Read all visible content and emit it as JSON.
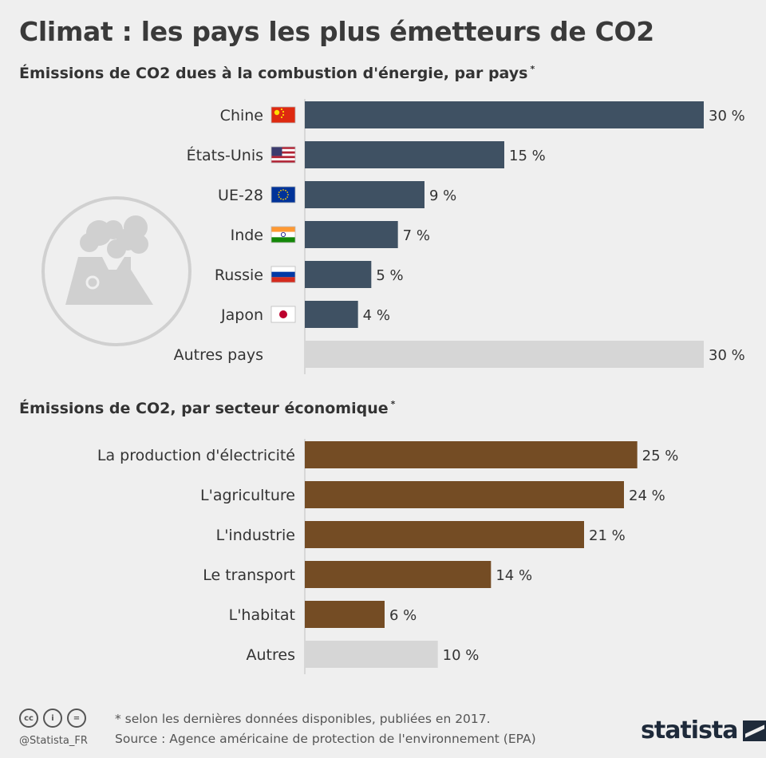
{
  "title": "Climat : les pays les plus émetteurs de CO2",
  "chart_data": [
    {
      "type": "bar",
      "title": "Émissions de CO2 dues à la combustion d'énergie, par pays",
      "title_marker": "*",
      "orientation": "horizontal",
      "unit": "%",
      "categories": [
        "Chine",
        "États-Unis",
        "UE-28",
        "Inde",
        "Russie",
        "Japon",
        "Autres pays"
      ],
      "values": [
        30,
        15,
        9,
        7,
        5,
        4,
        30
      ],
      "value_labels": [
        "30 %",
        "15 %",
        "9 %",
        "7 %",
        "5 %",
        "4 %",
        "30 %"
      ],
      "flags": [
        "china",
        "usa",
        "eu",
        "india",
        "russia",
        "japan",
        null
      ],
      "colors": [
        "#3f5163",
        "#3f5163",
        "#3f5163",
        "#3f5163",
        "#3f5163",
        "#3f5163",
        "#d6d6d6"
      ],
      "xlim": [
        0,
        30
      ],
      "grid": false
    },
    {
      "type": "bar",
      "title": "Émissions de CO2, par secteur économique",
      "title_marker": "*",
      "orientation": "horizontal",
      "unit": "%",
      "categories": [
        "La production d'électricité",
        "L'agriculture",
        "L'industrie",
        "Le transport",
        "L'habitat",
        "Autres"
      ],
      "values": [
        25,
        24,
        21,
        14,
        6,
        10
      ],
      "value_labels": [
        "25 %",
        "24 %",
        "21 %",
        "14 %",
        "6 %",
        "10 %"
      ],
      "colors": [
        "#744c24",
        "#744c24",
        "#744c24",
        "#744c24",
        "#744c24",
        "#d6d6d6"
      ],
      "xlim": [
        0,
        30
      ],
      "grid": false
    }
  ],
  "decoration": {
    "icon": "power-plant-icon",
    "color": "#d0d0d0"
  },
  "footer": {
    "note": "* selon les dernières données disponibles, publiées en 2017.",
    "source": "Source : Agence américaine de protection de l'environnement (EPA)",
    "handle": "@Statista_FR",
    "license_icons": [
      "cc-icon",
      "by-icon",
      "nd-icon"
    ],
    "logo": "statista"
  }
}
